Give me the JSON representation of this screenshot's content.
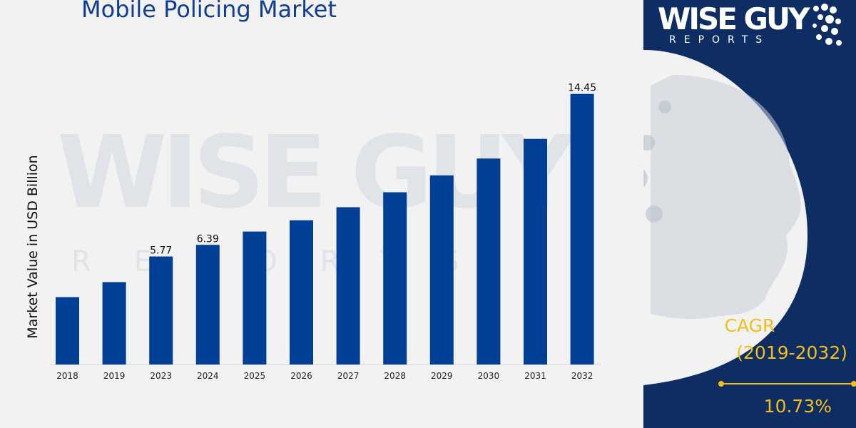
{
  "title": "Mobile Policing Market",
  "logo": {
    "main": "WISE GUY",
    "sub": "REPORTS"
  },
  "watermark": {
    "main": "WISE GUY",
    "sub": "REPORTS"
  },
  "cagr": {
    "label": "CAGR",
    "period": "(2019-2032)",
    "value": "10.73%"
  },
  "colors": {
    "bar": "#003f96",
    "title": "#0e3d93",
    "panel": "#0e2d62",
    "accent": "#f2be1a",
    "background": "#f2f2f2"
  },
  "chart_data": {
    "type": "bar",
    "title": "Mobile Policing Market",
    "ylabel": "Market Value in USD Billion",
    "xlabel": "",
    "categories": [
      "2018",
      "2019",
      "2023",
      "2024",
      "2025",
      "2026",
      "2027",
      "2028",
      "2029",
      "2030",
      "2031",
      "2032"
    ],
    "values": [
      3.6,
      4.4,
      5.77,
      6.39,
      7.1,
      7.7,
      8.4,
      9.2,
      10.1,
      11.0,
      12.05,
      14.45
    ],
    "data_labels": [
      "",
      "",
      "5.77",
      "6.39",
      "",
      "",
      "",
      "",
      "",
      "",
      "",
      "14.45"
    ],
    "ylim": [
      0,
      16
    ],
    "grid": false,
    "legend": "none"
  }
}
